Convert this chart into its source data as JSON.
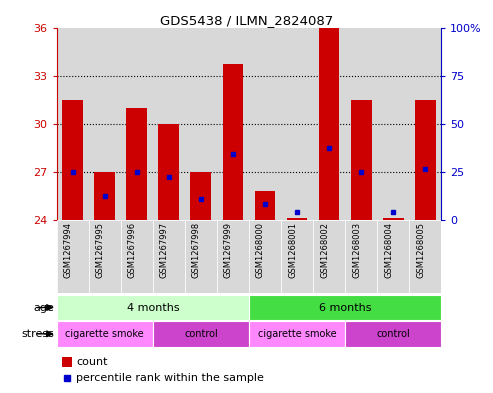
{
  "title": "GDS5438 / ILMN_2824087",
  "samples": [
    "GSM1267994",
    "GSM1267995",
    "GSM1267996",
    "GSM1267997",
    "GSM1267998",
    "GSM1267999",
    "GSM1268000",
    "GSM1268001",
    "GSM1268002",
    "GSM1268003",
    "GSM1268004",
    "GSM1268005"
  ],
  "count_values": [
    31.5,
    27.0,
    31.0,
    30.0,
    27.0,
    33.7,
    25.8,
    24.1,
    36.0,
    31.5,
    24.1,
    31.5
  ],
  "percentile_values": [
    27.0,
    25.5,
    27.0,
    26.7,
    25.3,
    28.1,
    25.0,
    24.5,
    28.5,
    27.0,
    24.5,
    27.2
  ],
  "baseline": 24,
  "ylim": [
    24,
    36
  ],
  "yticks_left": [
    24,
    27,
    30,
    33,
    36
  ],
  "yticks_right_vals": [
    0,
    25,
    50,
    75,
    100
  ],
  "yticks_right_labels": [
    "0",
    "25",
    "50",
    "75",
    "100%"
  ],
  "y2lim": [
    0,
    100
  ],
  "grid_values": [
    27,
    30,
    33
  ],
  "bar_color": "#cc0000",
  "percentile_color": "#0000cc",
  "age_groups": [
    {
      "label": "4 months",
      "start": 0,
      "end": 6,
      "color": "#ccffcc"
    },
    {
      "label": "6 months",
      "start": 6,
      "end": 12,
      "color": "#44dd44"
    }
  ],
  "stress_groups": [
    {
      "label": "cigarette smoke",
      "start": 0,
      "end": 3,
      "color": "#ff88ff"
    },
    {
      "label": "control",
      "start": 3,
      "end": 6,
      "color": "#cc44cc"
    },
    {
      "label": "cigarette smoke",
      "start": 6,
      "end": 9,
      "color": "#ff88ff"
    },
    {
      "label": "control",
      "start": 9,
      "end": 12,
      "color": "#cc44cc"
    }
  ],
  "bg_color": "#ffffff",
  "col_bg": "#d8d8d8",
  "legend_count_color": "#cc0000",
  "legend_pct_color": "#0000cc"
}
